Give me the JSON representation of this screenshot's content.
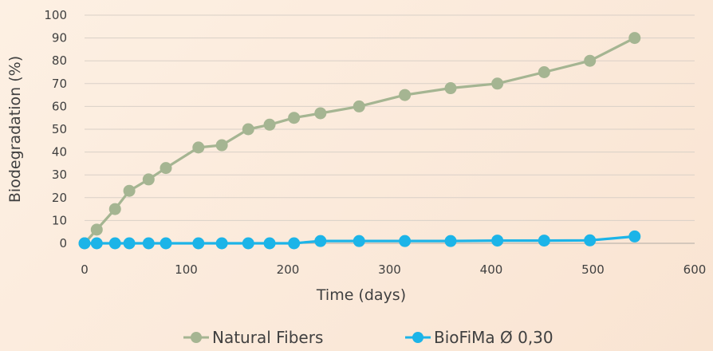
{
  "chart_data": {
    "type": "line",
    "xlabel": "Time (days)",
    "ylabel": "Biodegradation (%)",
    "xlim": [
      0,
      600
    ],
    "ylim": [
      0,
      100
    ],
    "x_ticks": [
      "0",
      "100",
      "200",
      "300",
      "400",
      "500",
      "600"
    ],
    "y_ticks": [
      "0",
      "10",
      "20",
      "30",
      "40",
      "50",
      "60",
      "70",
      "80",
      "90",
      "100"
    ],
    "grid": "horizontal",
    "legend_position": "bottom",
    "series": [
      {
        "name": "Natural Fibers",
        "color": "#a5b592",
        "points": [
          [
            0,
            0
          ],
          [
            12,
            6
          ],
          [
            30,
            15
          ],
          [
            44,
            23
          ],
          [
            63,
            28
          ],
          [
            80,
            33
          ],
          [
            112,
            42
          ],
          [
            135,
            43
          ],
          [
            161,
            50
          ],
          [
            182,
            52
          ],
          [
            206,
            55
          ],
          [
            232,
            57
          ],
          [
            270,
            60
          ],
          [
            315,
            65
          ],
          [
            360,
            68
          ],
          [
            406,
            70
          ],
          [
            452,
            75
          ],
          [
            497,
            80
          ],
          [
            541,
            90
          ]
        ]
      },
      {
        "name": "BioFiMa Ø 0,30",
        "color": "#1cb4e8",
        "points": [
          [
            0,
            0
          ],
          [
            12,
            0
          ],
          [
            30,
            0
          ],
          [
            44,
            0
          ],
          [
            63,
            0
          ],
          [
            80,
            0
          ],
          [
            112,
            0
          ],
          [
            135,
            0
          ],
          [
            161,
            0
          ],
          [
            182,
            0
          ],
          [
            206,
            0
          ],
          [
            232,
            1
          ],
          [
            270,
            1
          ],
          [
            315,
            1
          ],
          [
            360,
            1
          ],
          [
            406,
            1.2
          ],
          [
            452,
            1.2
          ],
          [
            497,
            1.3
          ],
          [
            541,
            3
          ]
        ]
      }
    ]
  }
}
